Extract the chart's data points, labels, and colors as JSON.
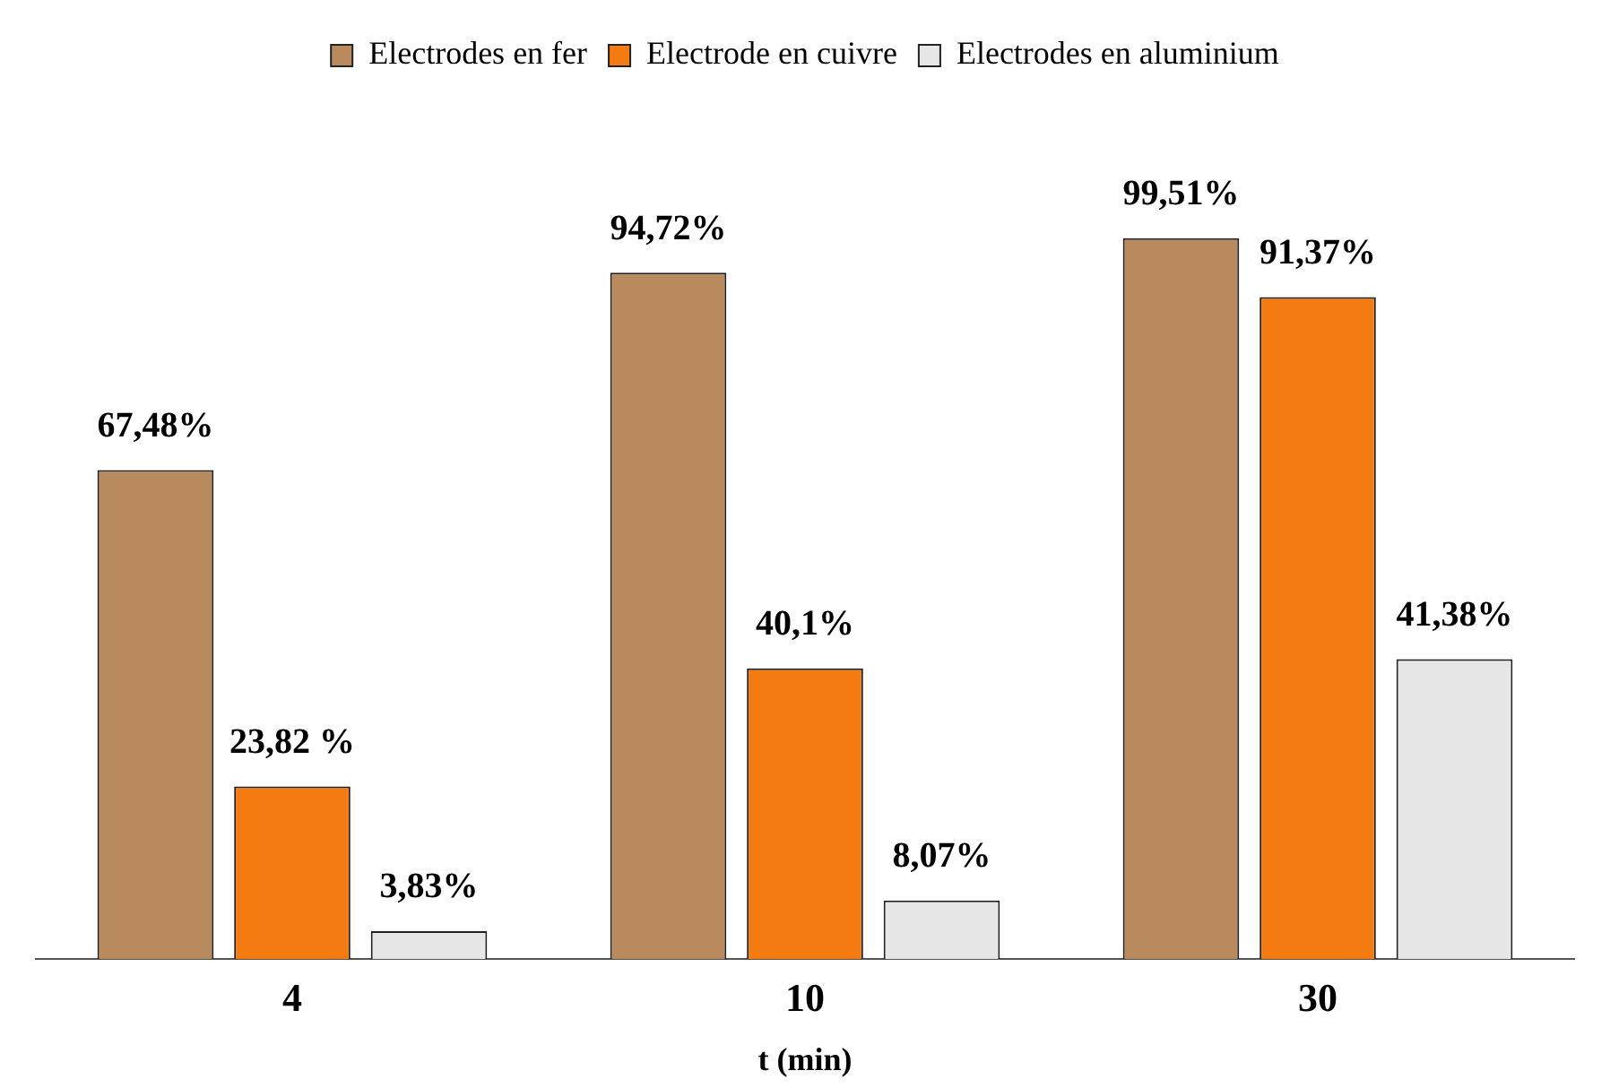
{
  "chart_data": {
    "type": "bar",
    "xlabel": "t (min)",
    "categories": [
      "4",
      "10",
      "30"
    ],
    "legend": "top",
    "grid": false,
    "series": [
      {
        "name": "Electrodes en fer",
        "color": "#b98a5e",
        "values": [
          67.48,
          94.72,
          99.51
        ],
        "value_labels": [
          "67,48%",
          "94,72%",
          "99,51%"
        ]
      },
      {
        "name": "Electrode en cuivre",
        "color": "#f47b12",
        "values": [
          23.82,
          40.1,
          91.37
        ],
        "value_labels": [
          "23,82 %",
          "40,1%",
          "91,37%"
        ]
      },
      {
        "name": "Electrodes en aluminium",
        "color": "#e6e6e6",
        "values": [
          3.83,
          8.07,
          41.38
        ],
        "value_labels": [
          "3,83%",
          "8,07%",
          "41,38%"
        ]
      }
    ]
  }
}
